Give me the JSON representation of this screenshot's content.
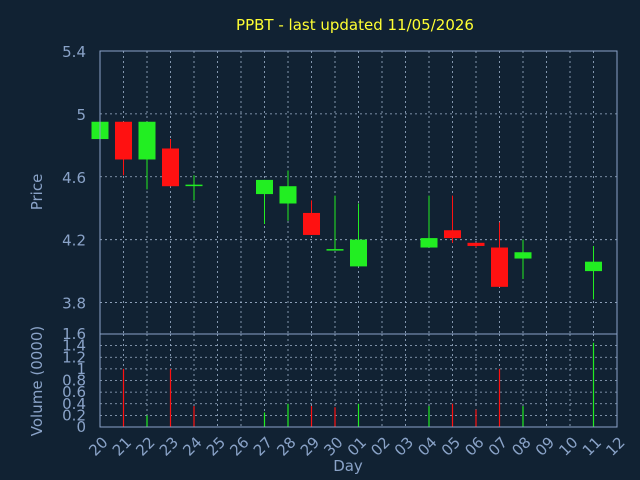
{
  "chart_data": {
    "type": "candlestick",
    "title": "PPBT - last updated 11/05/2026",
    "xlabel": "Day",
    "ylabel_price": "Price",
    "ylabel_volume": "Volume (0000)",
    "x_ticks": [
      "20",
      "21",
      "22",
      "23",
      "24",
      "25",
      "26",
      "27",
      "28",
      "29",
      "30",
      "01",
      "02",
      "03",
      "04",
      "05",
      "06",
      "07",
      "08",
      "09",
      "10",
      "11",
      "12"
    ],
    "price_ylim": [
      3.6,
      5.4
    ],
    "price_ticks": [
      "3.8",
      "4.2",
      "4.6",
      "5",
      "5.4"
    ],
    "volume_ylim": [
      0,
      1.6
    ],
    "volume_ticks": [
      "0",
      "0.2",
      "0.4",
      "0.6",
      "0.8",
      "1",
      "1.2",
      "1.4",
      "1.6"
    ],
    "grid": true,
    "colors": {
      "background": "#112233",
      "plot_border": "#8aa3c8",
      "grid": "#9fb3cc",
      "text": "#8aa3c8",
      "title": "#ffff33",
      "up": "#22ee22",
      "down": "#ff1111"
    },
    "candles": [
      {
        "day": "20",
        "open": 4.84,
        "high": 4.95,
        "low": 4.84,
        "close": 4.95
      },
      {
        "day": "21",
        "open": 4.95,
        "high": 4.95,
        "low": 4.61,
        "close": 4.71
      },
      {
        "day": "22",
        "open": 4.71,
        "high": 4.95,
        "low": 4.52,
        "close": 4.95
      },
      {
        "day": "23",
        "open": 4.78,
        "high": 4.84,
        "low": 4.54,
        "close": 4.54
      },
      {
        "day": "24",
        "open": 4.55,
        "high": 4.61,
        "low": 4.45,
        "close": 4.55
      },
      {
        "day": "27",
        "open": 4.49,
        "high": 4.58,
        "low": 4.3,
        "close": 4.58
      },
      {
        "day": "28",
        "open": 4.43,
        "high": 4.64,
        "low": 4.32,
        "close": 4.54
      },
      {
        "day": "29",
        "open": 4.37,
        "high": 4.45,
        "low": 4.23,
        "close": 4.23
      },
      {
        "day": "30",
        "open": 4.14,
        "high": 4.48,
        "low": 4.14,
        "close": 4.14
      },
      {
        "day": "01",
        "open": 4.03,
        "high": 4.43,
        "low": 4.03,
        "close": 4.2
      },
      {
        "day": "04",
        "open": 4.15,
        "high": 4.48,
        "low": 4.15,
        "close": 4.21
      },
      {
        "day": "05",
        "open": 4.26,
        "high": 4.48,
        "low": 4.18,
        "close": 4.21
      },
      {
        "day": "06",
        "open": 4.18,
        "high": 4.18,
        "low": 4.15,
        "close": 4.16
      },
      {
        "day": "07",
        "open": 4.15,
        "high": 4.31,
        "low": 3.9,
        "close": 3.9
      },
      {
        "day": "08",
        "open": 4.08,
        "high": 4.2,
        "low": 3.95,
        "close": 4.12
      },
      {
        "day": "11",
        "open": 4.0,
        "high": 4.16,
        "low": 3.82,
        "close": 4.06
      }
    ],
    "volume": [
      {
        "day": "20",
        "value": 0,
        "dir": "up"
      },
      {
        "day": "21",
        "value": 1.0,
        "dir": "down"
      },
      {
        "day": "22",
        "value": 0.2,
        "dir": "up"
      },
      {
        "day": "23",
        "value": 1.0,
        "dir": "down"
      },
      {
        "day": "24",
        "value": 0.36,
        "dir": "down"
      },
      {
        "day": "27",
        "value": 0.25,
        "dir": "up"
      },
      {
        "day": "28",
        "value": 0.4,
        "dir": "up"
      },
      {
        "day": "29",
        "value": 0.36,
        "dir": "down"
      },
      {
        "day": "30",
        "value": 0.34,
        "dir": "down"
      },
      {
        "day": "01",
        "value": 0.4,
        "dir": "up"
      },
      {
        "day": "04",
        "value": 0.36,
        "dir": "up"
      },
      {
        "day": "05",
        "value": 0.4,
        "dir": "down"
      },
      {
        "day": "06",
        "value": 0.3,
        "dir": "down"
      },
      {
        "day": "07",
        "value": 1.0,
        "dir": "down"
      },
      {
        "day": "08",
        "value": 0.36,
        "dir": "up"
      },
      {
        "day": "11",
        "value": 1.45,
        "dir": "up"
      }
    ]
  }
}
